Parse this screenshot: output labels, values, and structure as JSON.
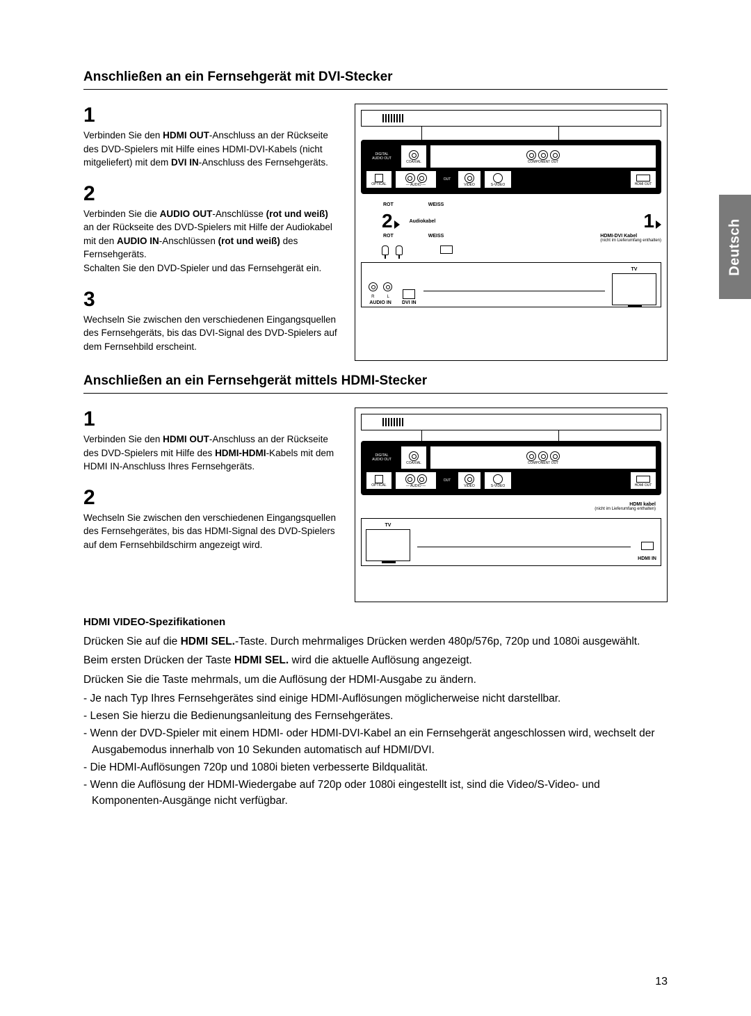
{
  "page_number": "13",
  "language_tab": "Deutsch",
  "section1": {
    "title": "Anschließen an ein Fernsehgerät mit DVI-Stecker",
    "steps": [
      {
        "num": "1",
        "html": "Verbinden Sie den <b>HDMI OUT</b>-Anschluss an der Rückseite des DVD-Spielers mit Hilfe eines HDMI-DVI-Kabels (nicht mitgeliefert) mit dem <b>DVI IN</b>-Anschluss des Fernsehgeräts."
      },
      {
        "num": "2",
        "html": "Verbinden Sie die <b>AUDIO OUT</b>-Anschlüsse <b>(rot und weiß)</b> an der Rückseite des DVD-Spielers mit Hilfe der Audiokabel mit den <b>AUDIO IN</b>-Anschlüssen <b>(rot und weiß)</b> des Fernsehgeräts.<br>Schalten Sie den DVD-Spieler und das Fernsehgerät ein."
      },
      {
        "num": "3",
        "html": "Wechseln Sie zwischen den verschiedenen Eingangsquellen des Fernsehgeräts, bis das DVI-Signal des DVD-Spielers auf dem Fernsehbild erscheint."
      }
    ],
    "diagram": {
      "labels": {
        "digital_audio_out": "DIGITAL\nAUDIO OUT",
        "coaxial": "COAXIAL",
        "component_out": "COMPONENT OUT",
        "optical": "OPTICAL",
        "audio": "AUDIO",
        "out": "OUT",
        "video": "VIDEO",
        "svideo": "S-VIDEO",
        "hdmi_out": "HDMI OUT",
        "rot": "ROT",
        "weiss": "WEISS",
        "audiokabel": "Audiokabel",
        "hdmi_dvi": "HDMI-DVI Kabel",
        "not_supplied": "(nicht im Lieferumfang enthalten)",
        "r": "R",
        "l": "L",
        "audio_in": "AUDIO IN",
        "dvi_in": "DVI IN",
        "tv": "TV",
        "n2": "2",
        "n1": "1"
      }
    }
  },
  "section2": {
    "title": "Anschließen an ein Fernsehgerät mittels HDMI-Stecker",
    "steps": [
      {
        "num": "1",
        "html": "Verbinden Sie den <b>HDMI OUT</b>-Anschluss an der Rückseite des DVD-Spielers mit Hilfe des <b>HDMI-HDMI</b>-Kabels mit dem HDMI IN-Anschluss Ihres Fernsehgeräts."
      },
      {
        "num": "2",
        "html": "Wechseln Sie zwischen den verschiedenen Eingangsquellen des Fernsehgerätes, bis das HDMI-Signal des DVD-Spielers auf dem Fernsehbildschirm angezeigt wird."
      }
    ],
    "diagram": {
      "labels": {
        "digital_audio_out": "DIGITAL\nAUDIO OUT",
        "coaxial": "COAXIAL",
        "component_out": "COMPONENT OUT",
        "optical": "OPTICAL",
        "audio": "AUDIO",
        "out": "OUT",
        "video": "VIDEO",
        "svideo": "S-VIDEO",
        "hdmi_out": "HDMI OUT",
        "hdmi_kabel": "HDMI kabel",
        "not_supplied": "(nicht im Lieferumfang enthalten)",
        "hdmi_in": "HDMI IN",
        "tv": "TV"
      }
    }
  },
  "spec": {
    "heading": "HDMI VIDEO-Spezifikationen",
    "p1": "Drücken Sie auf die <b>HDMI SEL.</b>-Taste. Durch mehrmaliges Drücken werden 480p/576p, 720p und 1080i ausgewählt.",
    "p2": "Beim ersten Drücken der Taste <b>HDMI SEL.</b> wird die aktuelle Auflösung angezeigt.",
    "p3": "Drücken Sie die Taste mehrmals, um die Auflösung der HDMI-Ausgabe zu ändern.",
    "bullets": [
      "- Je nach Typ Ihres Fernsehgerätes sind einige HDMI-Auflösungen möglicherweise nicht darstellbar.",
      "- Lesen Sie hierzu die Bedienungsanleitung des Fernsehgerätes.",
      "- Wenn der DVD-Spieler mit einem HDMI- oder HDMI-DVI-Kabel an ein Fernsehgerät angeschlossen wird, wechselt der Ausgabemodus innerhalb von 10 Sekunden automatisch auf HDMI/DVI.",
      "- Die HDMI-Auflösungen 720p und 1080i bieten verbesserte Bildqualität.",
      "- Wenn die Auflösung der HDMI-Wiedergabe auf 720p oder 1080i eingestellt ist, sind die Video/S-Video- und Komponenten-Ausgänge nicht verfügbar."
    ]
  },
  "colors": {
    "text": "#000000",
    "tab_bg": "#7a7a7a",
    "tab_fg": "#ffffff"
  }
}
